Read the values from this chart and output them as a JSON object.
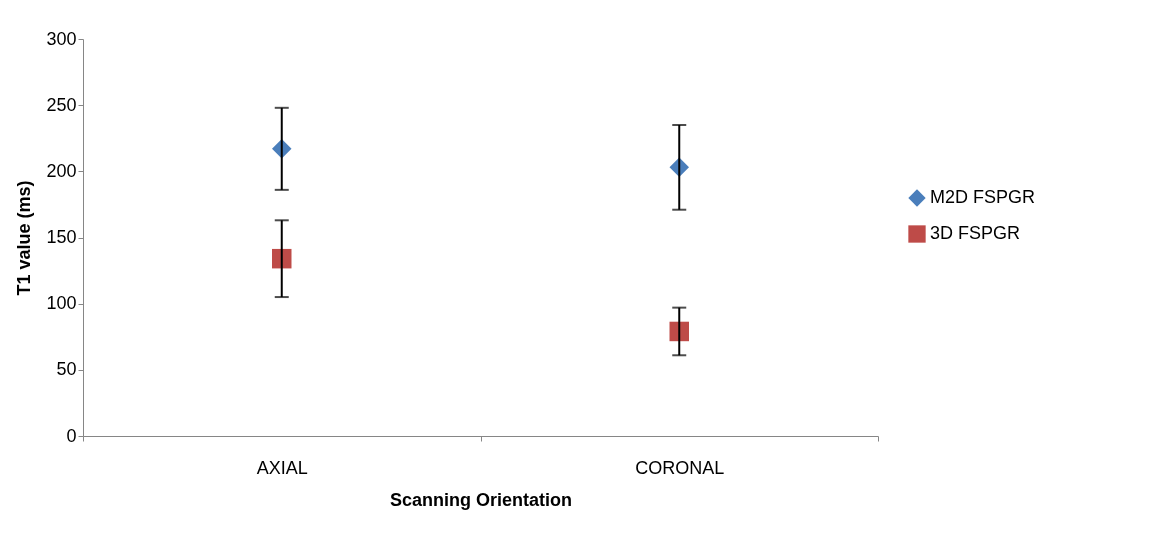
{
  "chart_data": {
    "type": "scatter",
    "xlabel": "Scanning Orientation",
    "ylabel": "T1 value (ms)",
    "categories": [
      "AXIAL",
      "CORONAL"
    ],
    "series": [
      {
        "name": "M2D FSPGR",
        "color": "#4a7ebb",
        "marker": "diamond",
        "values": [
          217,
          203
        ],
        "errors": [
          31,
          32
        ]
      },
      {
        "name": "3D FSPGR",
        "color": "#be4b48",
        "marker": "square",
        "values": [
          134,
          79
        ],
        "errors": [
          29,
          18
        ]
      }
    ],
    "ylim": [
      0,
      300
    ],
    "yticks": [
      0,
      50,
      100,
      150,
      200,
      250,
      300
    ],
    "grid": false,
    "legend": "right"
  }
}
